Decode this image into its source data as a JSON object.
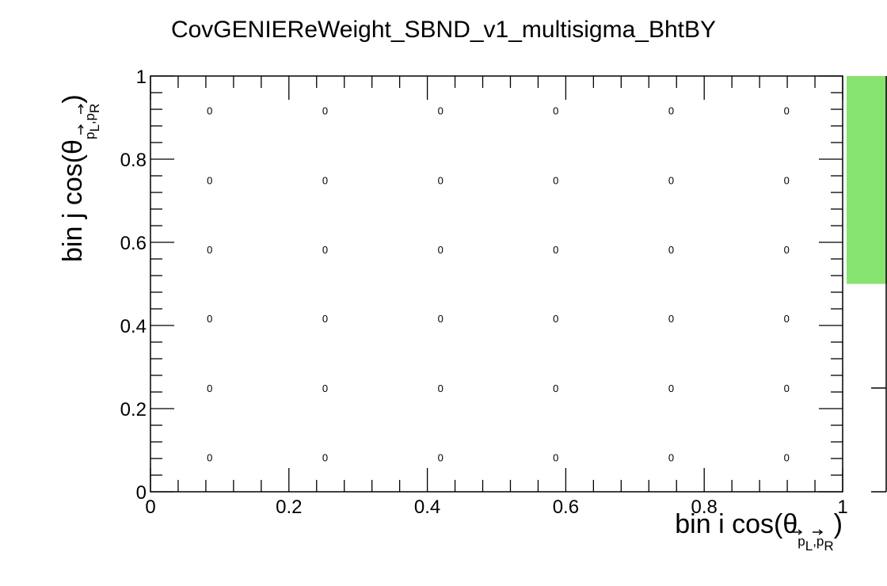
{
  "chart_data": {
    "type": "heatmap",
    "title": "CovGENIEReWeight_SBND_v1_multisigma_BhtBY",
    "xlabel": {
      "prefix": "bin i cos(",
      "theta": "θ",
      "sub_p": "p",
      "sub_L": "L",
      "sub_comma": ",",
      "sub_R": "R",
      "suffix": ")"
    },
    "ylabel": {
      "prefix": "bin j cos(",
      "theta": "θ",
      "sub_p": "p",
      "sub_L": "L",
      "sub_comma": ",",
      "sub_R": "R",
      "suffix": ")"
    },
    "xlim": [
      0,
      1
    ],
    "ylim": [
      0,
      1
    ],
    "x_ticks": [
      "0",
      "0.2",
      "0.4",
      "0.6",
      "0.8",
      "1"
    ],
    "y_ticks": [
      "0",
      "0.2",
      "0.4",
      "0.6",
      "0.8",
      "1"
    ],
    "x_bin_centers": [
      0.0833,
      0.25,
      0.4167,
      0.5833,
      0.75,
      0.9167
    ],
    "y_bin_centers": [
      0.0833,
      0.25,
      0.4167,
      0.5833,
      0.75,
      0.9167
    ],
    "cell_labels": [
      [
        "0",
        "0",
        "0",
        "0",
        "0",
        "0"
      ],
      [
        "0",
        "0",
        "0",
        "0",
        "0",
        "0"
      ],
      [
        "0",
        "0",
        "0",
        "0",
        "0",
        "0"
      ],
      [
        "0",
        "0",
        "0",
        "0",
        "0",
        "0"
      ],
      [
        "0",
        "0",
        "0",
        "0",
        "0",
        "0"
      ],
      [
        "0",
        "0",
        "0",
        "0",
        "0",
        "0"
      ]
    ],
    "palette": {
      "visible_fill_range": [
        0.5,
        1.0
      ],
      "color": "#86e36f"
    },
    "colors": {
      "frame": "#000000",
      "palette_fill": "#86e36f"
    }
  }
}
